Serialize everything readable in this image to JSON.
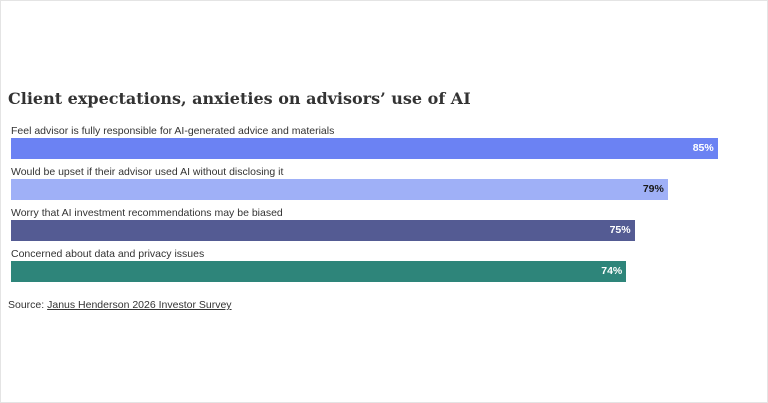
{
  "title": "Client expectations, anxieties on advisors’ use of AI",
  "source": {
    "prefix": "Source: ",
    "link_text": "Janus Henderson 2026 Investor Survey"
  },
  "chart_data": {
    "type": "bar",
    "orientation": "horizontal",
    "title": "Client expectations, anxieties on advisors’ use of AI",
    "categories": [
      "Feel advisor is fully responsible for AI-generated advice and materials",
      "Would be upset if their advisor used AI without disclosing it",
      "Worry that AI investment recommendations may be biased",
      "Concerned about data and privacy issues"
    ],
    "values": [
      85,
      79,
      75,
      74
    ],
    "value_labels": [
      "85%",
      "79%",
      "75%",
      "74%"
    ],
    "colors": [
      "#6b82f3",
      "#9fb0f7",
      "#545b93",
      "#2e857a"
    ],
    "label_colors": [
      "#ffffff",
      "#1a1a1a",
      "#ffffff",
      "#ffffff"
    ],
    "xlim": [
      0,
      89
    ],
    "grid": false,
    "legend": "none"
  }
}
